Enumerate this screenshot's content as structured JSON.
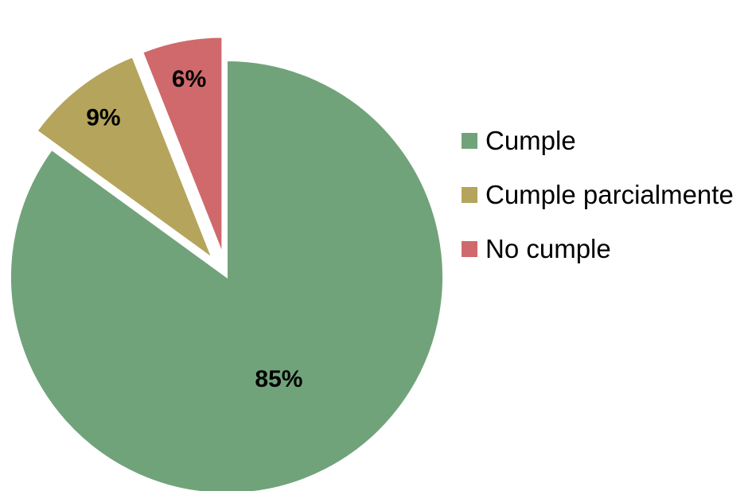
{
  "chart_data": {
    "type": "pie",
    "categories": [
      "Cumple",
      "Cumple parcialmente",
      "No cumple"
    ],
    "values": [
      85,
      9,
      6
    ],
    "data_labels": [
      "85%",
      "9%",
      "6%"
    ],
    "colors": [
      "#71a37a",
      "#b5a45b",
      "#d0696b"
    ],
    "exploded": [
      false,
      true,
      true
    ],
    "legend": {
      "placement": "right",
      "entries": [
        "Cumple",
        "Cumple parcialmente",
        "No cumple"
      ]
    }
  }
}
